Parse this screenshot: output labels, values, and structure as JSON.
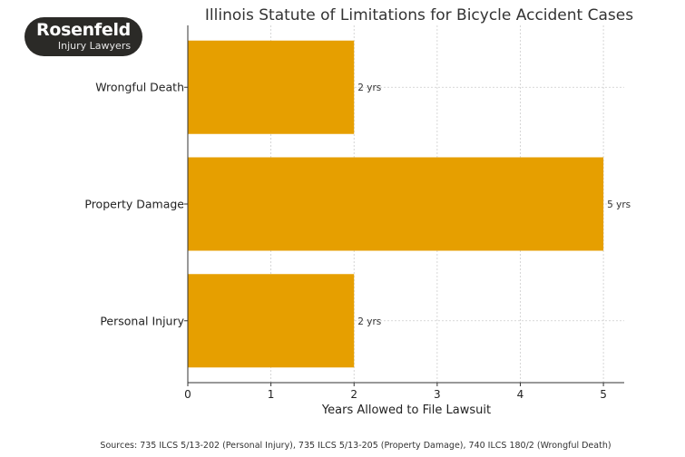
{
  "logo": {
    "line1": "Rosenfeld",
    "line2": "Injury Lawyers"
  },
  "chart_data": {
    "type": "bar",
    "orientation": "horizontal",
    "title": "Illinois Statute of Limitations for Bicycle Accident Cases",
    "xlabel": "Years Allowed to File Lawsuit",
    "ylabel": "",
    "categories": [
      "Personal Injury",
      "Property Damage",
      "Wrongful Death"
    ],
    "values": [
      2,
      5,
      2
    ],
    "data_labels": [
      "2 yrs",
      "5 yrs",
      "2 yrs"
    ],
    "xlim": [
      0,
      5.25
    ],
    "xticks": [
      0,
      1,
      2,
      3,
      4,
      5
    ],
    "grid": true,
    "bar_color": "#E69F00"
  },
  "footnote": "Sources: 735 ILCS 5/13-202 (Personal Injury), 735 ILCS 5/13-205 (Property Damage), 740 ILCS 180/2 (Wrongful Death)"
}
